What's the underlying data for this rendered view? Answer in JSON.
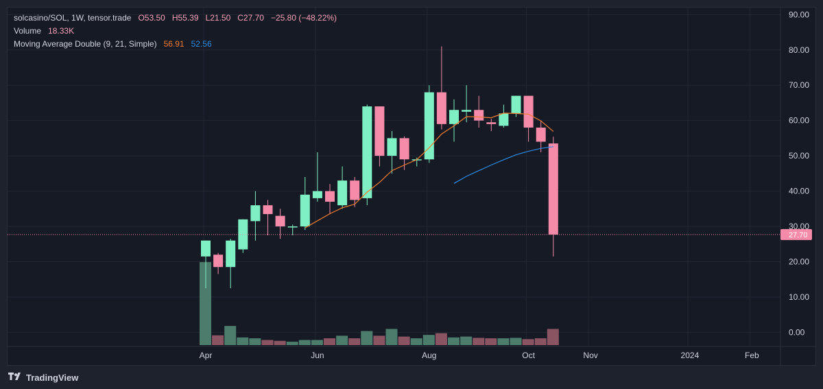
{
  "legend": {
    "symbol": "solcasino/SOL, 1W, tensor.trade",
    "open": "O53.50",
    "high": "H55.39",
    "low": "L21.50",
    "close": "C27.70",
    "change": "−25.80 (−48.22%)",
    "volume_label": "Volume",
    "volume_value": "18.33K",
    "ma_label": "Moving Average Double (9, 21, Simple)",
    "ma_fast_value": "56.91",
    "ma_slow_value": "52.56"
  },
  "footer": {
    "brand": "TradingView"
  },
  "colors": {
    "up": "#7ff0c3",
    "down": "#f68ba9",
    "vol_up": "#4b7c6c",
    "vol_down": "#8a5463",
    "ma_fast": "#f57c2f",
    "ma_slow": "#2c8ce6",
    "price_line": "#f68ba9",
    "grid": "#232733",
    "axis_text": "#d1d4dc"
  },
  "chart_data": {
    "type": "candlestick",
    "interval": "1W",
    "y_axis": {
      "min": -4,
      "max": 92,
      "ticks": [
        "90.00",
        "80.00",
        "70.00",
        "60.00",
        "50.00",
        "40.00",
        "30.00",
        "20.00",
        "10.00",
        "0.00"
      ],
      "tick_values": [
        90,
        80,
        70,
        60,
        50,
        40,
        30,
        20,
        10,
        0
      ]
    },
    "x_axis": {
      "labels": [
        "Apr",
        "Jun",
        "Aug",
        "Oct",
        "Nov",
        "2024",
        "Feb"
      ],
      "label_index": [
        0,
        9,
        18,
        26,
        31,
        39,
        44
      ]
    },
    "last_price": {
      "value": 27.7,
      "label": "27.70"
    },
    "candles": [
      {
        "o": 21.5,
        "h": 26.0,
        "l": 12.5,
        "c": 26.0
      },
      {
        "o": 22.0,
        "h": 22.5,
        "l": 16.5,
        "c": 18.5
      },
      {
        "o": 18.5,
        "h": 26.5,
        "l": 12.5,
        "c": 26.0
      },
      {
        "o": 23.5,
        "h": 32.0,
        "l": 22.5,
        "c": 32.0
      },
      {
        "o": 31.5,
        "h": 40.0,
        "l": 26.0,
        "c": 36.0
      },
      {
        "o": 36.0,
        "h": 37.5,
        "l": 27.5,
        "c": 33.5
      },
      {
        "o": 33.0,
        "h": 35.0,
        "l": 26.5,
        "c": 30.0
      },
      {
        "o": 30.0,
        "h": 30.5,
        "l": 27.5,
        "c": 30.0
      },
      {
        "o": 30.0,
        "h": 44.0,
        "l": 29.0,
        "c": 39.0
      },
      {
        "o": 38.0,
        "h": 51.0,
        "l": 37.0,
        "c": 40.0
      },
      {
        "o": 40.0,
        "h": 42.0,
        "l": 33.5,
        "c": 37.0
      },
      {
        "o": 36.0,
        "h": 47.0,
        "l": 35.0,
        "c": 43.0
      },
      {
        "o": 43.0,
        "h": 44.0,
        "l": 35.5,
        "c": 37.5
      },
      {
        "o": 38.0,
        "h": 64.5,
        "l": 36.0,
        "c": 64.0
      },
      {
        "o": 64.0,
        "h": 64.0,
        "l": 47.0,
        "c": 50.0
      },
      {
        "o": 50.0,
        "h": 57.0,
        "l": 45.0,
        "c": 55.0
      },
      {
        "o": 55.0,
        "h": 55.5,
        "l": 46.0,
        "c": 49.0
      },
      {
        "o": 49.0,
        "h": 49.5,
        "l": 47.0,
        "c": 49.0
      },
      {
        "o": 49.0,
        "h": 70.0,
        "l": 48.0,
        "c": 68.0
      },
      {
        "o": 68.0,
        "h": 81.0,
        "l": 57.5,
        "c": 59.0
      },
      {
        "o": 59.0,
        "h": 66.0,
        "l": 54.0,
        "c": 63.0
      },
      {
        "o": 62.5,
        "h": 70.0,
        "l": 59.5,
        "c": 63.0
      },
      {
        "o": 63.0,
        "h": 67.0,
        "l": 58.0,
        "c": 60.0
      },
      {
        "o": 59.5,
        "h": 60.5,
        "l": 57.0,
        "c": 59.0
      },
      {
        "o": 58.5,
        "h": 64.5,
        "l": 58.0,
        "c": 62.0
      },
      {
        "o": 62.0,
        "h": 67.0,
        "l": 61.0,
        "c": 67.0
      },
      {
        "o": 67.0,
        "h": 67.0,
        "l": 54.0,
        "c": 58.0
      },
      {
        "o": 58.0,
        "h": 60.0,
        "l": 51.0,
        "c": 54.0
      },
      {
        "o": 53.5,
        "h": 55.4,
        "l": 21.5,
        "c": 27.7
      }
    ],
    "volume": [
      19.5,
      2.3,
      4.5,
      1.8,
      1.6,
      1.2,
      1.0,
      0.8,
      1.2,
      1.2,
      1.6,
      2.2,
      1.6,
      3.3,
      2.2,
      3.8,
      2.0,
      1.6,
      2.4,
      2.8,
      1.8,
      2.0,
      1.7,
      1.6,
      1.6,
      1.7,
      1.4,
      1.6,
      3.8
    ],
    "ma_fast": {
      "name": "MA 9",
      "start_index": 8,
      "values": [
        29.6,
        31.6,
        33.6,
        35.3,
        36.3,
        39.7,
        42.5,
        45.8,
        47.4,
        48.9,
        52.3,
        56.2,
        58.5,
        61.1,
        61.0,
        60.8,
        62.1,
        62.0,
        61.8,
        59.9,
        56.9
      ]
    },
    "ma_slow": {
      "name": "MA 21",
      "start_index": 20,
      "values": [
        42.2,
        44.2,
        45.8,
        47.4,
        48.9,
        50.3,
        51.3,
        52.1,
        52.6
      ]
    }
  }
}
